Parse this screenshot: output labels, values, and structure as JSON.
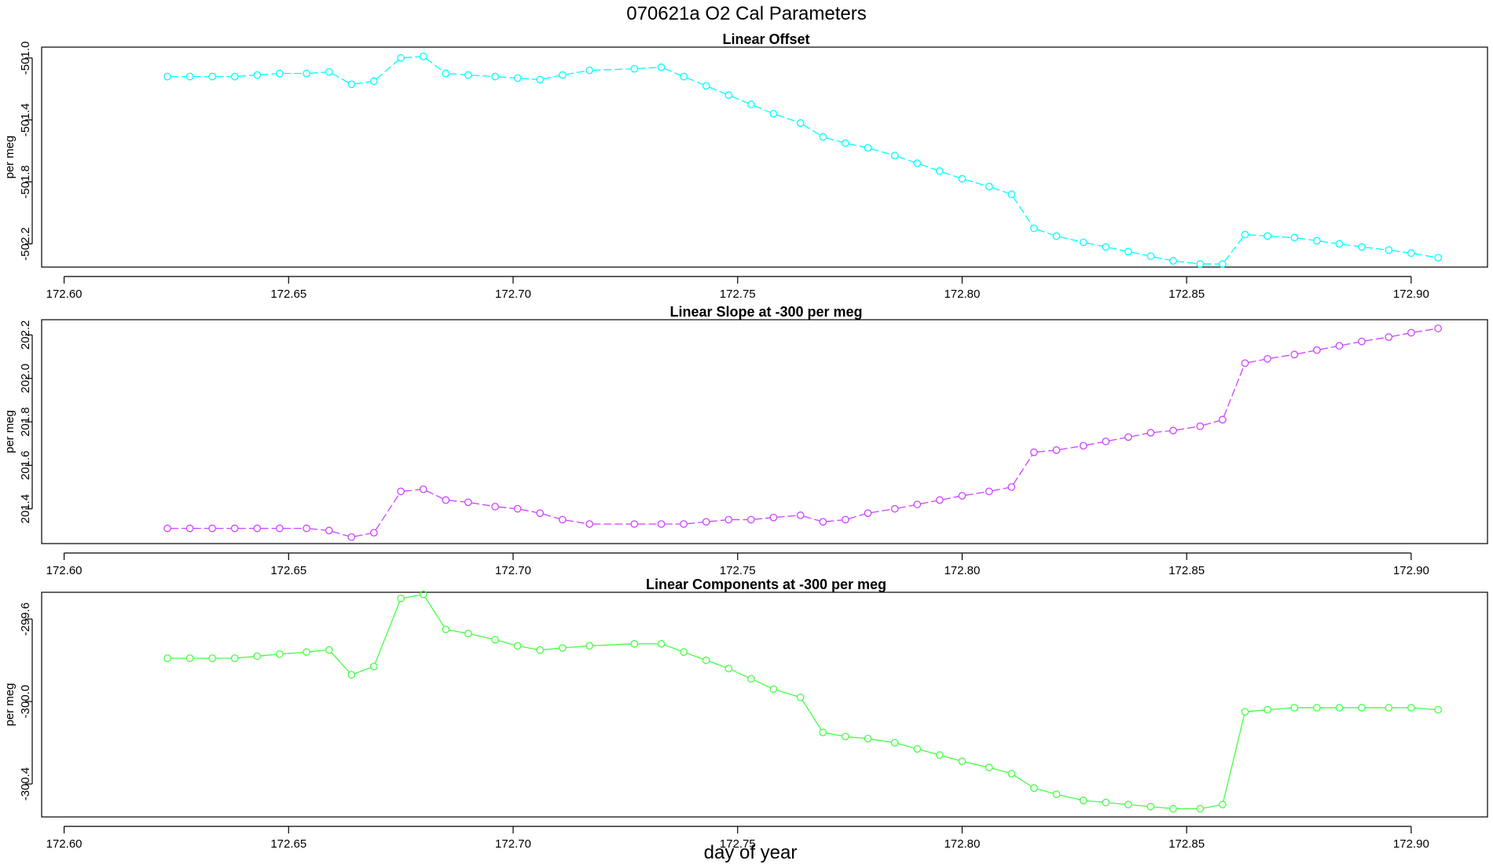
{
  "figure": {
    "title": "070621a   O2 Cal Parameters",
    "xlabel": "day of year"
  },
  "chart_data": [
    {
      "type": "line",
      "title": "Linear Offset",
      "ylabel": "per meg",
      "color": "#00ffff",
      "line_style": "dashed",
      "xlim": [
        172.595,
        172.917
      ],
      "ylim": [
        -502.35,
        -500.93
      ],
      "x_ticks": [
        "172.60",
        "172.65",
        "172.70",
        "172.75",
        "172.80",
        "172.85",
        "172.90"
      ],
      "y_ticks": [
        "-501.0",
        "-501.4",
        "-501.8",
        "-502.2"
      ],
      "series": [
        {
          "x": [
            172.623,
            172.628,
            172.633,
            172.638,
            172.643,
            172.648,
            172.654,
            172.659,
            172.664,
            172.669,
            172.675,
            172.68,
            172.685,
            172.69,
            172.696,
            172.701,
            172.706,
            172.711,
            172.717,
            172.727,
            172.733,
            172.738,
            172.743,
            172.748,
            172.753,
            172.758,
            172.764,
            172.769,
            172.774,
            172.779,
            172.785,
            172.79,
            172.795,
            172.8,
            172.806,
            172.811,
            172.816,
            172.821,
            172.827,
            172.832,
            172.837,
            172.842,
            172.847,
            172.853,
            172.858,
            172.863,
            172.868,
            172.874,
            172.879,
            172.884,
            172.889,
            172.895,
            172.9,
            172.906
          ],
          "values": [
            -501.12,
            -501.12,
            -501.12,
            -501.12,
            -501.11,
            -501.1,
            -501.1,
            -501.09,
            -501.17,
            -501.15,
            -501.0,
            -500.99,
            -501.1,
            -501.11,
            -501.12,
            -501.13,
            -501.14,
            -501.11,
            -501.08,
            -501.07,
            -501.06,
            -501.12,
            -501.18,
            -501.24,
            -501.3,
            -501.36,
            -501.42,
            -501.51,
            -501.55,
            -501.58,
            -501.63,
            -501.68,
            -501.73,
            -501.78,
            -501.83,
            -501.88,
            -502.1,
            -502.15,
            -502.19,
            -502.22,
            -502.25,
            -502.28,
            -502.31,
            -502.33,
            -502.33,
            -502.14,
            -502.15,
            -502.16,
            -502.18,
            -502.2,
            -502.22,
            -502.24,
            -502.26,
            -502.29
          ]
        }
      ]
    },
    {
      "type": "line",
      "title": "Linear Slope at -300 per meg",
      "ylabel": "per meg",
      "color": "#cc44ff",
      "line_style": "dashed",
      "xlim": [
        172.595,
        172.917
      ],
      "ylim": [
        201.24,
        202.27
      ],
      "x_ticks": [
        "172.60",
        "172.65",
        "172.70",
        "172.75",
        "172.80",
        "172.85",
        "172.90"
      ],
      "y_ticks": [
        "201.4",
        "201.6",
        "201.8",
        "202.0",
        "202.2"
      ],
      "series": [
        {
          "x": [
            172.623,
            172.628,
            172.633,
            172.638,
            172.643,
            172.648,
            172.654,
            172.659,
            172.664,
            172.669,
            172.675,
            172.68,
            172.685,
            172.69,
            172.696,
            172.701,
            172.706,
            172.711,
            172.717,
            172.727,
            172.733,
            172.738,
            172.743,
            172.748,
            172.753,
            172.758,
            172.764,
            172.769,
            172.774,
            172.779,
            172.785,
            172.79,
            172.795,
            172.8,
            172.806,
            172.811,
            172.816,
            172.821,
            172.827,
            172.832,
            172.837,
            172.842,
            172.847,
            172.853,
            172.858,
            172.863,
            172.868,
            172.874,
            172.879,
            172.884,
            172.889,
            172.895,
            172.9,
            172.906
          ],
          "values": [
            201.31,
            201.31,
            201.31,
            201.31,
            201.31,
            201.31,
            201.31,
            201.3,
            201.27,
            201.29,
            201.48,
            201.49,
            201.44,
            201.43,
            201.41,
            201.4,
            201.38,
            201.35,
            201.33,
            201.33,
            201.33,
            201.33,
            201.34,
            201.35,
            201.35,
            201.36,
            201.37,
            201.34,
            201.35,
            201.38,
            201.4,
            201.42,
            201.44,
            201.46,
            201.48,
            201.5,
            201.66,
            201.67,
            201.69,
            201.71,
            201.73,
            201.75,
            201.76,
            201.78,
            201.81,
            202.07,
            202.09,
            202.11,
            202.13,
            202.15,
            202.17,
            202.19,
            202.21,
            202.23
          ]
        }
      ]
    },
    {
      "type": "line",
      "title": "Linear Components at -300 per meg",
      "ylabel": "per meg",
      "color": "#44ff44",
      "line_style": "solid",
      "xlim": [
        172.595,
        172.917
      ],
      "ylim": [
        -300.56,
        -299.47
      ],
      "x_ticks": [
        "172.60",
        "172.65",
        "172.70",
        "172.75",
        "172.80",
        "172.85",
        "172.90"
      ],
      "y_ticks": [
        "-299.6",
        "-300.0",
        "-300.4"
      ],
      "series": [
        {
          "x": [
            172.623,
            172.628,
            172.633,
            172.638,
            172.643,
            172.648,
            172.654,
            172.659,
            172.664,
            172.669,
            172.675,
            172.68,
            172.685,
            172.69,
            172.696,
            172.701,
            172.706,
            172.711,
            172.717,
            172.727,
            172.733,
            172.738,
            172.743,
            172.748,
            172.753,
            172.758,
            172.764,
            172.769,
            172.774,
            172.779,
            172.785,
            172.79,
            172.795,
            172.8,
            172.806,
            172.811,
            172.816,
            172.821,
            172.827,
            172.832,
            172.837,
            172.842,
            172.847,
            172.853,
            172.858,
            172.863,
            172.868,
            172.874,
            172.879,
            172.884,
            172.889,
            172.895,
            172.9,
            172.906
          ],
          "values": [
            -299.79,
            -299.79,
            -299.79,
            -299.79,
            -299.78,
            -299.77,
            -299.76,
            -299.75,
            -299.87,
            -299.83,
            -299.5,
            -299.48,
            -299.65,
            -299.67,
            -299.7,
            -299.73,
            -299.75,
            -299.74,
            -299.73,
            -299.72,
            -299.72,
            -299.76,
            -299.8,
            -299.84,
            -299.89,
            -299.94,
            -299.98,
            -300.15,
            -300.17,
            -300.18,
            -300.2,
            -300.23,
            -300.26,
            -300.29,
            -300.32,
            -300.35,
            -300.42,
            -300.45,
            -300.48,
            -300.49,
            -300.5,
            -300.51,
            -300.52,
            -300.52,
            -300.5,
            -300.05,
            -300.04,
            -300.03,
            -300.03,
            -300.03,
            -300.03,
            -300.03,
            -300.03,
            -300.04
          ]
        }
      ]
    }
  ]
}
